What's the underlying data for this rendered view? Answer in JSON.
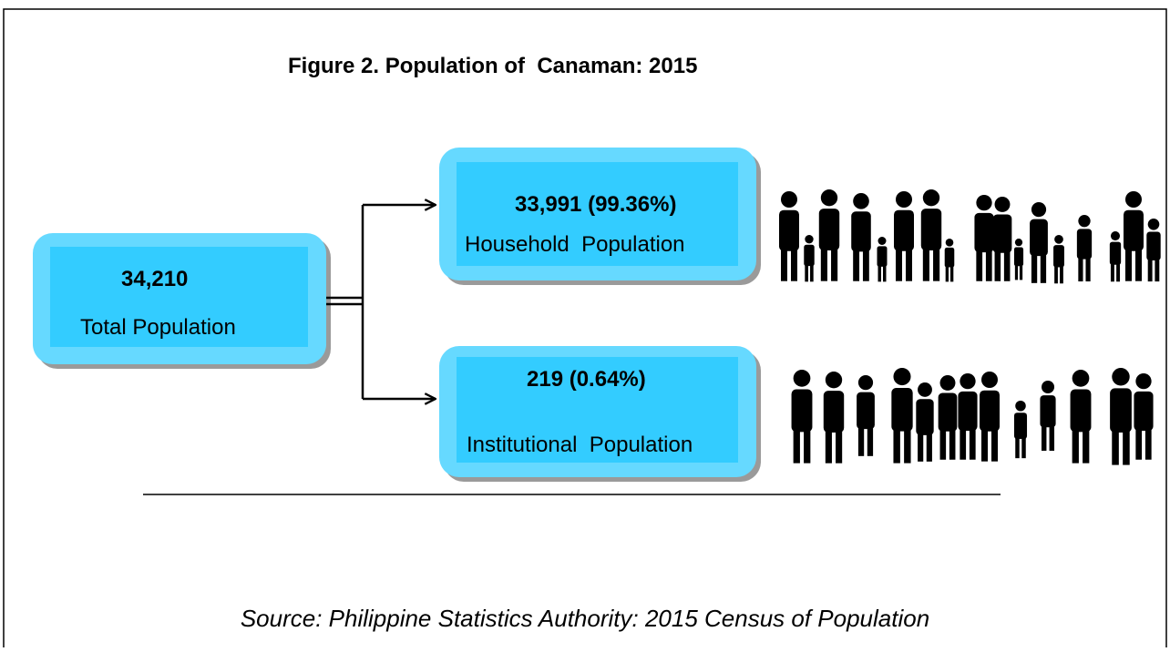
{
  "title": "Figure 2. Population of  Canaman: 2015",
  "nodes": [
    {
      "value": "34,210",
      "label": "Total Population"
    },
    {
      "value": "33,991 (99.36%)",
      "label": "Household  Population"
    },
    {
      "value": "219 (0.64%)",
      "label": "Institutional  Population"
    }
  ],
  "source": "Source: Philippine Statistics Authority: 2015 Census of Population"
}
